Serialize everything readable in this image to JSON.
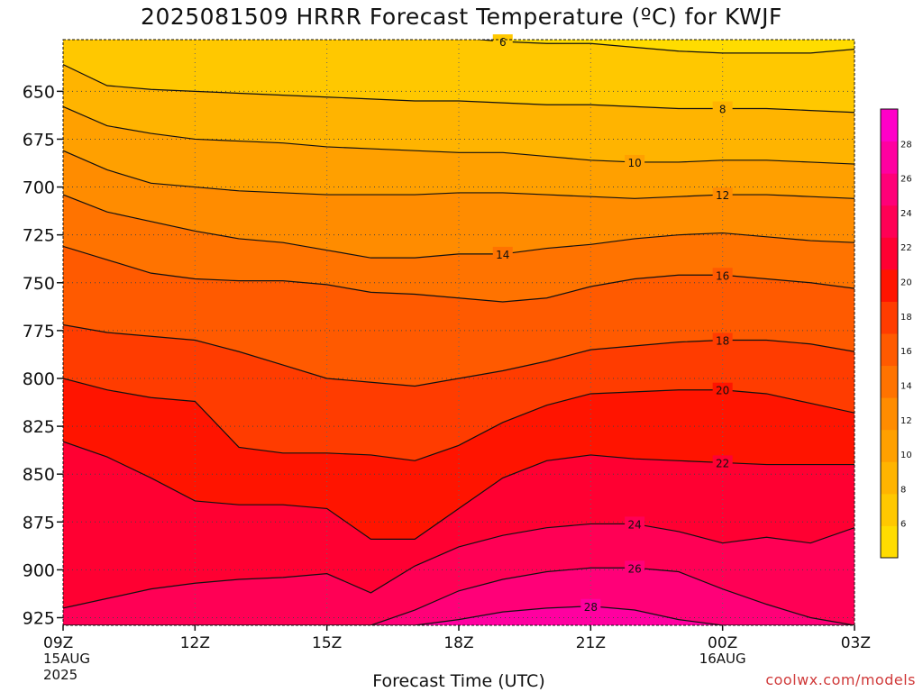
{
  "title": "2025081509 HRRR Forecast Temperature (ºC) for KWJF",
  "credit": "coolwx.com/models",
  "chart_data": {
    "type": "contour",
    "title": "2025081509 HRRR Forecast Temperature (ºC) for KWJF",
    "xlabel": "Forecast Time (UTC)",
    "ylabel": "",
    "x_hours": [
      0,
      1,
      2,
      3,
      4,
      5,
      6,
      7,
      8,
      9,
      10,
      11,
      12,
      13,
      14,
      15,
      16,
      17,
      18
    ],
    "x_ticks": [
      {
        "hour": 0,
        "label": "09Z",
        "sub1": "15AUG",
        "sub2": "2025"
      },
      {
        "hour": 3,
        "label": "12Z",
        "sub1": "",
        "sub2": ""
      },
      {
        "hour": 6,
        "label": "15Z",
        "sub1": "",
        "sub2": ""
      },
      {
        "hour": 9,
        "label": "18Z",
        "sub1": "",
        "sub2": ""
      },
      {
        "hour": 12,
        "label": "21Z",
        "sub1": "",
        "sub2": ""
      },
      {
        "hour": 15,
        "label": "00Z",
        "sub1": "16AUG",
        "sub2": ""
      },
      {
        "hour": 18,
        "label": "03Z",
        "sub1": "",
        "sub2": ""
      }
    ],
    "y_ticks": [
      650,
      675,
      700,
      725,
      750,
      775,
      800,
      825,
      850,
      875,
      900,
      925
    ],
    "ylim": [
      929,
      623
    ],
    "surface_pressure_mb": 929,
    "grid": true,
    "levels": [
      6,
      8,
      10,
      12,
      14,
      16,
      18,
      20,
      22,
      24,
      26,
      28
    ],
    "colorbar": {
      "labels": [
        6,
        8,
        10,
        12,
        14,
        16,
        18,
        20,
        22,
        24,
        26,
        28
      ],
      "colors": [
        "#ffdc00",
        "#ffc800",
        "#ffb400",
        "#ffa000",
        "#ff8c00",
        "#ff7300",
        "#ff5a00",
        "#ff3c00",
        "#ff1400",
        "#ff0032",
        "#ff0055",
        "#ff0078",
        "#ff00a0",
        "#ff00c8"
      ],
      "range": [
        4,
        30
      ]
    },
    "isotherms": [
      {
        "value": 6,
        "label_at_hour": 10,
        "pressure": [
          621,
          621,
          621,
          621,
          621,
          621,
          621,
          621,
          622,
          622,
          624,
          625,
          625,
          627,
          629,
          630,
          630,
          630,
          628
        ]
      },
      {
        "value": 8,
        "label_at_hour": 15,
        "pressure": [
          636,
          647,
          649,
          650,
          651,
          652,
          653,
          654,
          655,
          655,
          656,
          657,
          657,
          658,
          659,
          659,
          659,
          660,
          661
        ]
      },
      {
        "value": 10,
        "label_at_hour": 13,
        "pressure": [
          658,
          668,
          672,
          675,
          676,
          677,
          679,
          680,
          681,
          682,
          682,
          684,
          686,
          687,
          687,
          686,
          686,
          687,
          688
        ]
      },
      {
        "value": 12,
        "label_at_hour": 15,
        "pressure": [
          681,
          691,
          698,
          700,
          702,
          703,
          704,
          704,
          704,
          703,
          703,
          704,
          705,
          706,
          705,
          704,
          704,
          705,
          706
        ]
      },
      {
        "value": 14,
        "label_at_hour": 10,
        "pressure": [
          704,
          713,
          718,
          723,
          727,
          729,
          733,
          737,
          737,
          735,
          735,
          732,
          730,
          727,
          725,
          724,
          726,
          728,
          729
        ]
      },
      {
        "value": 16,
        "label_at_hour": 15,
        "pressure": [
          731,
          738,
          745,
          748,
          749,
          749,
          751,
          755,
          756,
          758,
          760,
          758,
          752,
          748,
          746,
          746,
          748,
          750,
          753
        ]
      },
      {
        "value": 18,
        "label_at_hour": 15,
        "pressure": [
          772,
          776,
          778,
          780,
          786,
          793,
          800,
          802,
          804,
          800,
          796,
          791,
          785,
          783,
          781,
          780,
          780,
          782,
          786
        ]
      },
      {
        "value": 20,
        "label_at_hour": 15,
        "pressure": [
          800,
          806,
          810,
          812,
          836,
          839,
          839,
          840,
          843,
          835,
          823,
          814,
          808,
          807,
          806,
          806,
          808,
          813,
          818
        ]
      },
      {
        "value": 22,
        "label_at_hour": 15,
        "pressure": [
          833,
          841,
          852,
          864,
          866,
          866,
          868,
          884,
          884,
          868,
          852,
          843,
          840,
          842,
          843,
          844,
          845,
          845,
          845
        ]
      },
      {
        "value": 24,
        "label_at_hour": 13,
        "pressure": [
          920,
          915,
          910,
          907,
          905,
          904,
          902,
          912,
          898,
          888,
          882,
          878,
          876,
          876,
          880,
          886,
          883,
          886,
          878
        ]
      },
      {
        "value": 26,
        "label_at_hour": 13,
        "pressure": [
          929,
          929,
          929,
          929,
          929,
          929,
          929,
          929,
          921,
          911,
          905,
          901,
          899,
          899,
          901,
          910,
          918,
          925,
          929
        ]
      },
      {
        "value": 28,
        "label_at_hour": 12,
        "pressure": [
          929,
          929,
          929,
          929,
          929,
          929,
          929,
          929,
          929,
          926,
          922,
          920,
          919,
          921,
          926,
          929,
          929,
          929,
          929
        ]
      }
    ]
  }
}
